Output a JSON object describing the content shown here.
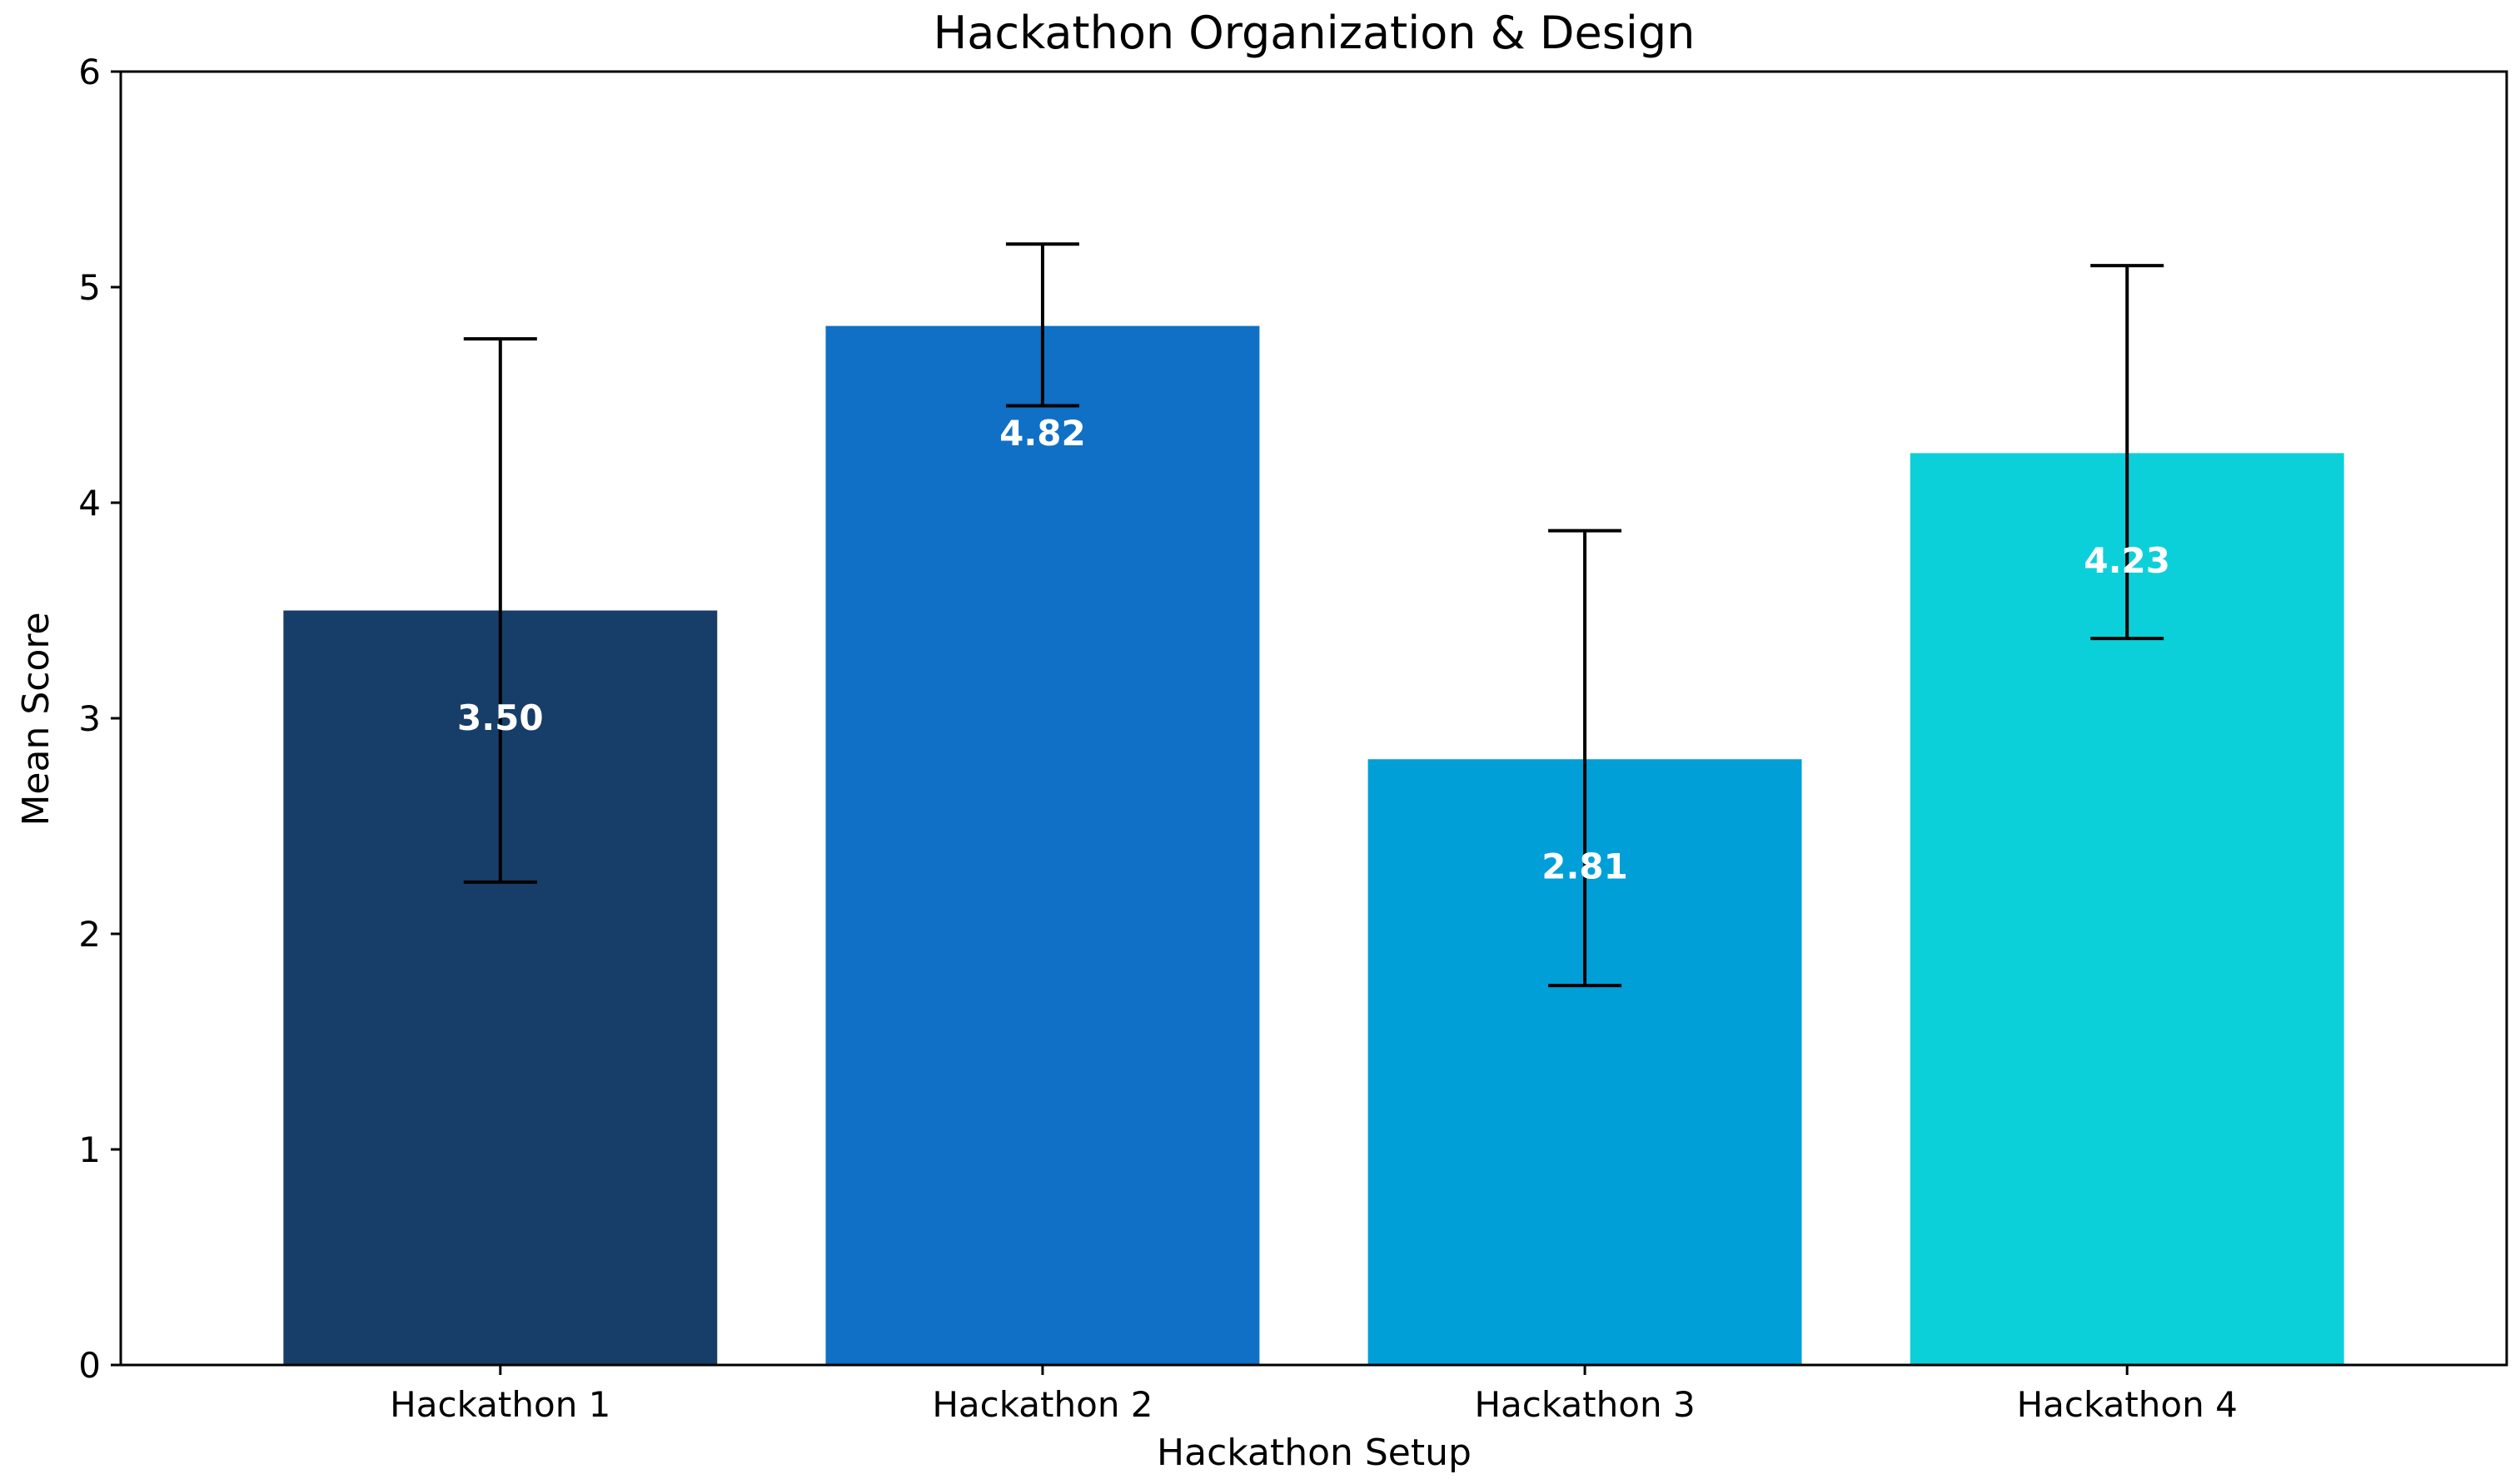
{
  "chart_data": {
    "type": "bar",
    "title": "Hackathon Organization & Design",
    "xlabel": "Hackathon Setup",
    "ylabel": "Mean Score",
    "categories": [
      "Hackathon 1",
      "Hackathon 2",
      "Hackathon 3",
      "Hackathon 4"
    ],
    "values": [
      3.5,
      4.82,
      2.81,
      4.23
    ],
    "value_labels": [
      "3.50",
      "4.82",
      "2.81",
      "4.23"
    ],
    "error_bars": [
      {
        "low": 2.24,
        "high": 4.76
      },
      {
        "low": 4.45,
        "high": 5.2
      },
      {
        "low": 1.76,
        "high": 3.87
      },
      {
        "low": 3.37,
        "high": 5.1
      }
    ],
    "colors": [
      "#173e69",
      "#0f70c5",
      "#009fd8",
      "#0bd0d9"
    ],
    "ylim": [
      0,
      6
    ],
    "yticks": [
      0,
      1,
      2,
      3,
      4,
      5,
      6
    ],
    "ytick_labels": [
      "0",
      "1",
      "2",
      "3",
      "4",
      "5",
      "6"
    ],
    "grid": false,
    "legend": "none"
  }
}
